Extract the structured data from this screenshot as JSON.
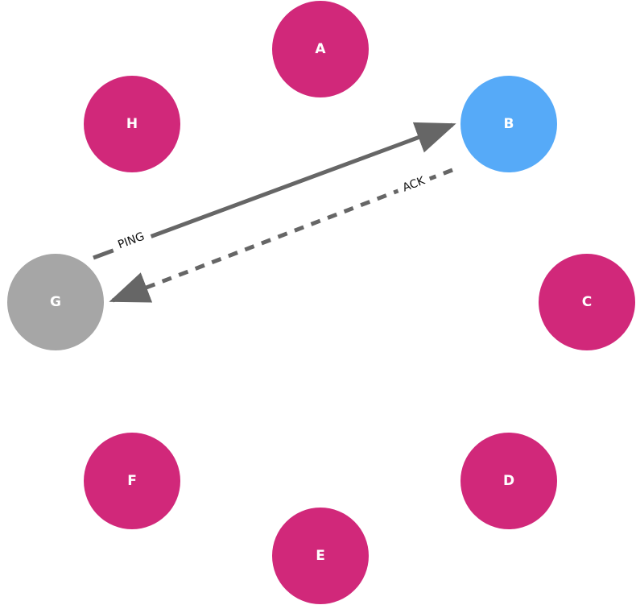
{
  "colors": {
    "node_default": "#d1287a",
    "node_target": "#56aaf8",
    "node_source": "#a6a6a6",
    "edge": "#666666"
  },
  "nodes": [
    {
      "id": "A",
      "label": "A",
      "role": "default"
    },
    {
      "id": "B",
      "label": "B",
      "role": "target"
    },
    {
      "id": "C",
      "label": "C",
      "role": "default"
    },
    {
      "id": "D",
      "label": "D",
      "role": "default"
    },
    {
      "id": "E",
      "label": "E",
      "role": "default"
    },
    {
      "id": "F",
      "label": "F",
      "role": "default"
    },
    {
      "id": "G",
      "label": "G",
      "role": "source"
    },
    {
      "id": "H",
      "label": "H",
      "role": "default"
    }
  ],
  "edges": [
    {
      "from": "G",
      "to": "B",
      "label": "PING",
      "style": "solid"
    },
    {
      "from": "B",
      "to": "G",
      "label": "ACK",
      "style": "dashed"
    }
  ]
}
